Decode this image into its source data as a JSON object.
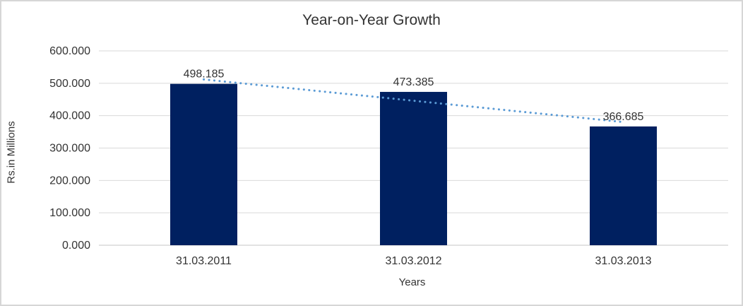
{
  "chart_data": {
    "type": "bar",
    "title": "Year-on-Year Growth",
    "xlabel": "Years",
    "ylabel": "Rs.in Millions",
    "categories": [
      "31.03.2011",
      "31.03.2012",
      "31.03.2013"
    ],
    "values": [
      498.185,
      473.385,
      366.685
    ],
    "data_labels": [
      "498.185",
      "473.385",
      "366.685"
    ],
    "y_ticks": [
      "0.000",
      "100.000",
      "200.000",
      "300.000",
      "400.000",
      "500.000",
      "600.000"
    ],
    "ylim": [
      0,
      600
    ],
    "y_tick_step": 100,
    "grid": true,
    "legend_position": "none",
    "trendline": {
      "type": "linear",
      "style": "dotted"
    },
    "colors": {
      "bar": "#002060",
      "trendline": "#5b9bd5",
      "gridline": "#d9d9d9",
      "axis_line": "#d9d9d9",
      "text": "#333333",
      "frame_border": "#d6d6d6",
      "background": "#ffffff"
    }
  }
}
